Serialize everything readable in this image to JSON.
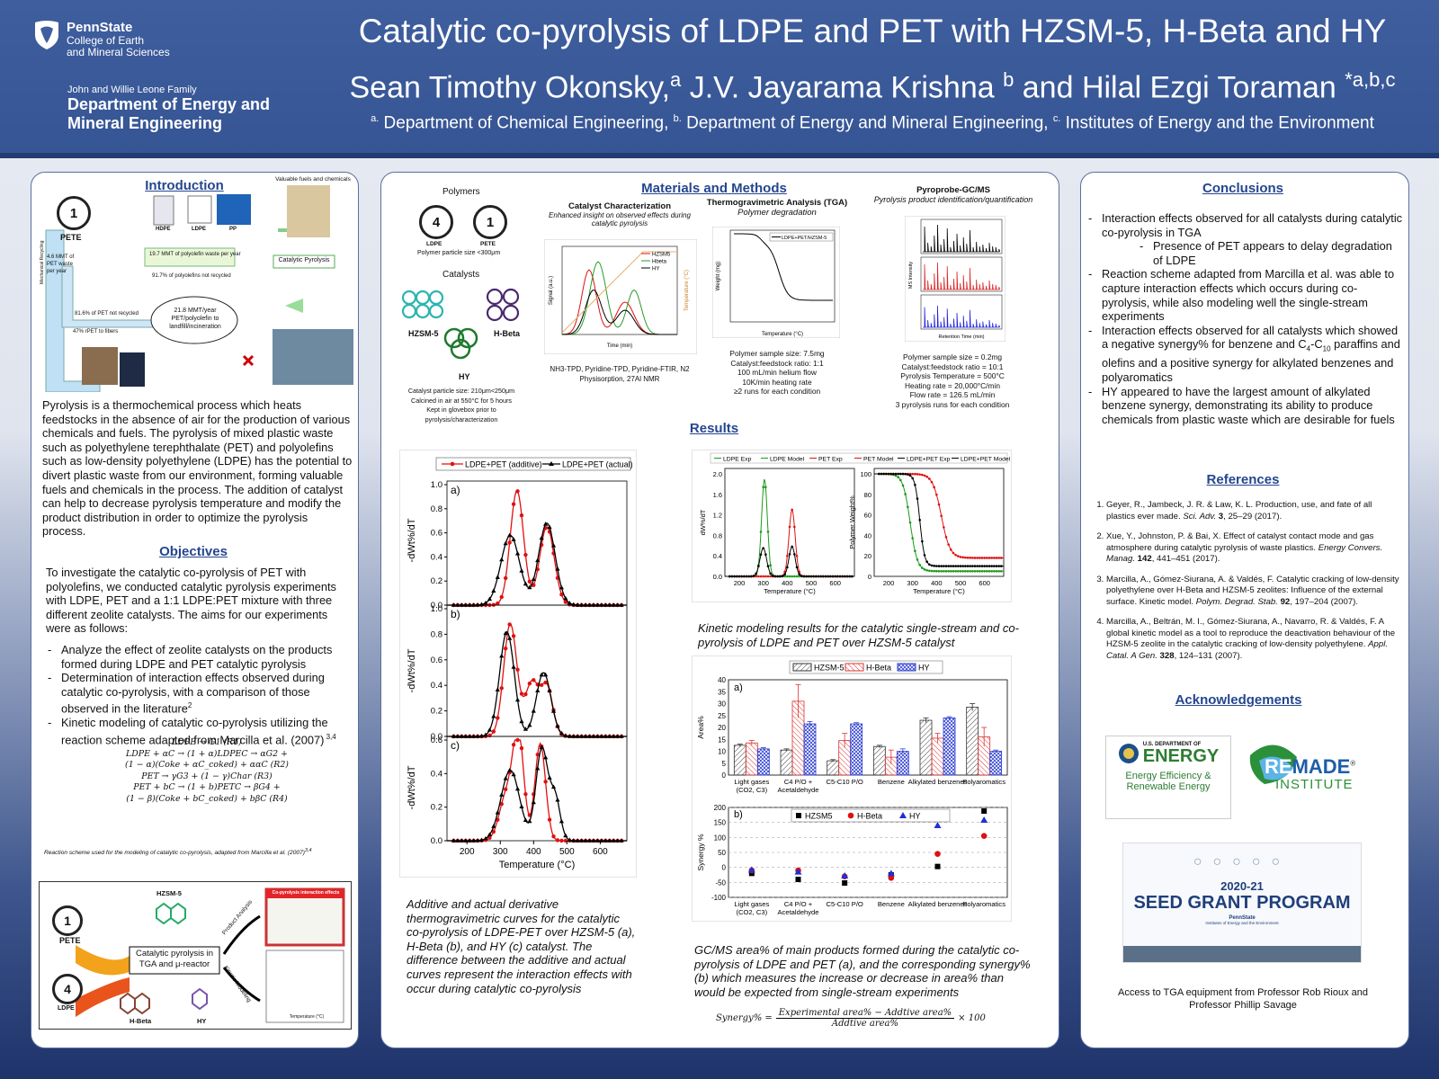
{
  "header": {
    "psu": {
      "name": "PennState",
      "line1": "College of Earth",
      "line2": "and Mineral Sciences"
    },
    "dept_small": "John and Willie Leone Family",
    "dept_line1": "Department of Energy and",
    "dept_line2": "Mineral Engineering",
    "title": "Catalytic co-pyrolysis of LDPE and PET with HZSM-5, H-Beta and HY",
    "authors": {
      "a1": "Sean Timothy Okonsky,",
      "s1": "a",
      "a2": " J.V. Jayarama Krishna ",
      "s2": "b",
      "a3": " and Hilal Ezgi Toraman ",
      "s3": "*a,b,c"
    },
    "affil": {
      "s1": "a.",
      "t1": " Department of Chemical Engineering, ",
      "s2": "b.",
      "t2": "  Department of Energy and Mineral Engineering, ",
      "s3": "c.",
      "t3": " Institutes of Energy and the Environment"
    }
  },
  "left": {
    "intro_title": "Introduction",
    "fig": {
      "valuable": "Valuable fuels and chemicals",
      "pete": "PETE",
      "hdpe": "HDPE",
      "ldpe": "LDPE",
      "pp": "PP",
      "mmt_pet": "4.6 MMT of PET waste per year",
      "mmt_poly": "19.7 MMT of polyolefin waste per year",
      "poly_not": "91.7% of polyolefins not recycled",
      "pet_not": "81.6% of PET not recycled",
      "fibers": "47% rPET to fibers",
      "landfill": "21.8 MMT/year PET/polyolefin to landfill/incineration",
      "cat_pyro": "Catalytic Pyrolysis",
      "recycled": "Mechanical Recycling"
    },
    "intro_text": "Pyrolysis is a thermochemical process which heats feedstocks in the absence of air for the production of various chemicals and fuels.  The pyrolysis of mixed plastic waste such as polyethylene terephthalate (PET) and polyolefins such as low-density polyethylene (LDPE) has the potential to divert plastic waste from our environment, forming valuable fuels and chemicals in the process. The addition of catalyst can help to decrease pyrolysis temperature and modify the product distribution in order to optimize the pyrolysis process.",
    "obj_title": "Objectives",
    "obj_text": "To investigate the catalytic co-pyrolysis of PET with polyolefins, we conducted catalytic pyrolysis experiments with LDPE, PET and a 1:1 LDPE:PET mixture with three different zeolite catalysts. The aims for our experiments were as follows:",
    "obj_items": [
      "Analyze the effect of zeolite catalysts on the products formed during LDPE and PET catalytic pyrolysis",
      "Determination of interaction effects observed during catalytic co-pyrolysis, with a comparison of those observed in the literature",
      "Kinetic modeling of catalytic co-pyrolysis utilizing the reaction scheme adapted from Marcilla et al. (2007)"
    ],
    "obj_sup2": "2",
    "obj_sup34": " 3,4",
    "eq": [
      "LDPE → G1 (R1)",
      "LDPE + αC → (1 + α)LDPEC → αG2 +",
      "(1 − α)(Coke + αC_coked) + ααC      (R2)",
      "PET → γG3 + (1 − γ)Char (R3)",
      "PET + bC → (1 + b)PETC → βG4 +",
      "(1 − β)(Coke + bC_coked) + bβC      (R4)"
    ],
    "eq_caption": "Reaction scheme used for the modeling of catalytic co-pyrolysis, adapted from Marcilla et al. (2007)",
    "eq_caption_sup": "3,4",
    "graphic": {
      "hzsm": "HZSM-5",
      "hbeta": "H-Beta",
      "hy": "HY",
      "pete": "PETE",
      "ldpe": "LDPE",
      "box": "Catalytic pyrolysis in TGA and μ-reactor",
      "prod": "Product Analysis",
      "kin": "Kinetic Modeling",
      "interaction": "Co-pyrolysis interaction effects",
      "temp": "Temperature (°C)"
    }
  },
  "mid": {
    "mm_title": "Materials and Methods",
    "polymers": "Polymers",
    "pete": "PETE",
    "ldpe": "LDPE",
    "poly_size": "Polymer particle size <300μm",
    "catalysts": "Catalysts",
    "hzsm": "HZSM-5",
    "hbeta": "H-Beta",
    "hy": "HY",
    "cat_note": [
      "Catalyst particle size: 210μm<250μm",
      "Calcined in air at 550°C for 5 hours",
      "Kept in glovebox prior to",
      "pyrolysis/characterization"
    ],
    "cc_title": "Catalyst Characterization",
    "cc_sub": "Enhanced insight on observed effects during catalytic pyrolysis",
    "cc_methods": "NH3-TPD, Pyridine-TPD, Pyridine-FTIR, N2 Physisorption, 27Al NMR",
    "cc_legend": [
      "HZSM5",
      "Hbeta",
      "HY"
    ],
    "cc_xlabel": "Time (min)",
    "cc_ylabel": "Signal (a.u.)",
    "cc_y2label": "Temperature (°C)",
    "tga_title": "Thermogravimetric Analysis (TGA)",
    "tga_sub": "Polymer degradation",
    "tga_legend": "LDPE+PET/HZSM-5",
    "tga_xlabel": "Temperature (°C)",
    "tga_ylabel": "Weight (mg)",
    "tga_note": [
      "Polymer sample size: 7.5mg",
      "Catalyst:feedstock ratio: 1:1",
      "100 mL/min helium flow",
      "10K/min heating rate",
      "≥2 runs for each condition"
    ],
    "gc_title": "Pyroprobe-GC/MS",
    "gc_sub": "Pyrolysis product identification/quantification",
    "gc_xlabel": "Retention Time (min)",
    "gc_ylabel": "MS Intensity",
    "gc_note": [
      "Polymer sample size = 0.2mg",
      "Catalyst:feedstock ratio = 10:1",
      "Pyrolysis Temperature = 500°C",
      "Heating rate = 20,000°C/min",
      "Flow rate = 126.5 mL/min",
      "3 pyrolysis runs for each condition"
    ],
    "results_title": "Results",
    "dtg_caption": "Additive and actual derivative thermogravimetric curves for the catalytic co-pyrolysis of LDPE-PET over HZSM-5 (a), H-Beta (b), and HY (c) catalyst. The difference between the additive and actual curves represent the interaction effects with occur during catalytic co-pyrolysis",
    "kin_caption": "Kinetic modeling results for the catalytic single-stream and co-pyrolysis of LDPE and PET over HZSM-5 catalyst",
    "gc_caption": "GC/MS area% of main products formed during the catalytic co-pyrolysis of LDPE and PET (a), and the corresponding synergy% (b) which measures the increase or decrease in area% than would be expected from single-stream experiments",
    "syn_eq": {
      "lhs": "Synergy% =",
      "num": "Experimental area% − Addtive area%",
      "den": "Addtive area%",
      "rhs": "× 100"
    }
  },
  "right": {
    "concl_title": "Conclusions",
    "concl": [
      "Interaction effects observed for all catalysts during catalytic co-pyrolysis in TGA",
      "Reaction scheme adapted from Marcilla et al. was able to capture interaction effects which occurs during co-pyrolysis, while also modeling well the single-stream experiments",
      "HY appeared to have the largest amount of alkylated benzene synergy, demonstrating its ability to produce chemicals from plastic waste which are desirable for fuels"
    ],
    "concl_sub": "Presence of PET appears to delay degradation of LDPE",
    "concl3": {
      "a": "Interaction effects observed for all catalysts which showed a negative synergy% for benzene and C",
      "b": "4",
      "c": "-C",
      "d": "10",
      "e": " paraffins and olefins and a positive synergy for alkylated benzenes and polyaromatics"
    },
    "ref_title": "References",
    "refs": [
      {
        "a": "Geyer, R., Jambeck, J. R. & Law, K. L. Production, use, and fate of all plastics ever made. ",
        "j": "Sci. Adv.",
        "b": " 3",
        "c": ", 25–29 (2017)."
      },
      {
        "a": "Xue, Y., Johnston, P. & Bai, X. Effect of catalyst contact mode and gas atmosphere during catalytic pyrolysis of waste plastics. ",
        "j": "Energy Convers. Manag.",
        "b": " 142",
        "c": ", 441–451 (2017)."
      },
      {
        "a": "Marcilla, A., Gómez-Siurana, A. & Valdés, F. Catalytic cracking of low-density polyethylene over H-Beta and HZSM-5 zeolites: Influence of the external surface. Kinetic model. ",
        "j": "Polym. Degrad. Stab.",
        "b": " 92",
        "c": ", 197–204 (2007)."
      },
      {
        "a": "Marcilla, A., Beltrán, M. I., Gómez-Siurana, A., Navarro, R. & Valdés, F. A global kinetic model as a tool to reproduce the deactivation behaviour of the HZSM-5 zeolite in the catalytic cracking of low-density polyethylene. ",
        "j": "Appl. Catal. A Gen.",
        "b": " 328",
        "c": ", 124–131 (2007)."
      }
    ],
    "ack_title": "Acknowledgements",
    "doe": {
      "top": "U.S. DEPARTMENT OF",
      "big": "ENERGY",
      "l1": "Energy Efficiency &",
      "l2": "Renewable Energy"
    },
    "remade": {
      "a": "RE",
      "b": "MADE",
      "c": "INSTITUTE",
      "reg": "®"
    },
    "seed": {
      "year": "2020-21",
      "title": "SEED GRANT PROGRAM",
      "org": "PennState",
      "sub": "Institutes of Energy and the Environment"
    },
    "ack_text": "Access to TGA equipment from Professor Rob Rioux and Professor Phillip Savage"
  },
  "chart_data": [
    {
      "type": "line",
      "id": "dtg",
      "panels": [
        "a)",
        "b)",
        "c)"
      ],
      "legend": [
        "LDPE+PET (additive)",
        "LDPE+PET (actual)"
      ],
      "xlabel": "Temperature (°C)",
      "ylabel": "-dWt%/dT",
      "xticks": [
        200,
        300,
        400,
        500,
        600
      ],
      "xlim": [
        140,
        680
      ],
      "ylim_ab": [
        0,
        1.0
      ],
      "ylim_c": [
        0,
        0.6
      ],
      "yticks_ab": [
        "0.0",
        "0.2",
        "0.4",
        "0.6",
        "0.8",
        "1.0"
      ],
      "yticks_c": [
        "0.0",
        "0.2",
        "0.4",
        "0.6"
      ],
      "peaks": {
        "a": {
          "add": [
            [
              350,
              0.95,
              20
            ],
            [
              440,
              0.65,
              22
            ]
          ],
          "act": [
            [
              330,
              0.58,
              28
            ],
            [
              440,
              0.68,
              25
            ]
          ]
        },
        "b": {
          "add": [
            [
              330,
              0.88,
              20
            ],
            [
              395,
              0.42,
              20
            ],
            [
              440,
              0.38,
              18
            ]
          ],
          "act": [
            [
              320,
              0.82,
              22
            ],
            [
              430,
              0.5,
              22
            ]
          ]
        },
        "c": {
          "add": [
            [
              355,
              0.6,
              16
            ],
            [
              320,
              0.28,
              22
            ],
            [
              420,
              0.58,
              16
            ]
          ],
          "act": [
            [
              330,
              0.42,
              28
            ],
            [
              425,
              0.55,
              18
            ],
            [
              465,
              0.25,
              15
            ]
          ]
        }
      }
    },
    {
      "type": "line",
      "id": "kinetic",
      "legend": [
        "LDPE Exp",
        "LDPE Model",
        "PET Exp",
        "PET Model",
        "LDPE+PET Exp",
        "LDPE+PET Model"
      ],
      "xlabel": "Temperature (°C)",
      "ylabel_left": "dW%/dT",
      "ylabel_right": "Polymer Weight%",
      "xticks": [
        200,
        300,
        400,
        500,
        600
      ],
      "yticks_left": [
        "0.0",
        "0.4",
        "0.8",
        "1.2",
        "1.6",
        "2.0"
      ],
      "yticks_right": [
        "0",
        "20",
        "40",
        "60",
        "80",
        "100"
      ]
    },
    {
      "type": "bar",
      "id": "area",
      "label": "a)",
      "categories": [
        "Light gases (CO2, C3)",
        "C4 P/O + Acetaldehyde",
        "C5-C10 P/O",
        "Benzene",
        "Alkylated benzenes",
        "Polyaromatics"
      ],
      "ylabel": "Area%",
      "ylim": [
        0,
        40
      ],
      "yticks": [
        "0",
        "5",
        "10",
        "15",
        "20",
        "25",
        "30",
        "35",
        "40"
      ],
      "series": [
        {
          "name": "HZSM-5",
          "values": [
            12.5,
            10.5,
            6,
            12,
            23,
            28.5
          ]
        },
        {
          "name": "H-Beta",
          "values": [
            13.5,
            31,
            14.5,
            7.5,
            15.5,
            16
          ]
        },
        {
          "name": "HY",
          "values": [
            11,
            21.5,
            21.5,
            10,
            24,
            10
          ]
        }
      ],
      "errors": [
        [
          0.5,
          0.5,
          0.5,
          0.5,
          1,
          1.5
        ],
        [
          1,
          7,
          3,
          3,
          2,
          4
        ],
        [
          0.5,
          1,
          0.5,
          1,
          0.5,
          0.5
        ]
      ]
    },
    {
      "type": "scatter",
      "id": "synergy",
      "label": "b)",
      "categories": [
        "Light gases (CO2, C3)",
        "C4 P/O + Acetaldehyde",
        "C5-C10 P/O",
        "Benzene",
        "Alkylated benzenes",
        "Polyaromatics"
      ],
      "ylabel": "Synergy %",
      "ylim": [
        -100,
        200
      ],
      "yticks": [
        "-100",
        "-50",
        "0",
        "50",
        "100",
        "150",
        "200"
      ],
      "series": [
        {
          "name": "HZSM5",
          "values": [
            -20,
            -40,
            -52,
            -25,
            3,
            188
          ]
        },
        {
          "name": "H-Beta",
          "values": [
            -10,
            -10,
            -30,
            -35,
            45,
            105
          ]
        },
        {
          "name": "HY",
          "values": [
            -8,
            -15,
            -28,
            -20,
            140,
            158
          ]
        }
      ]
    }
  ]
}
